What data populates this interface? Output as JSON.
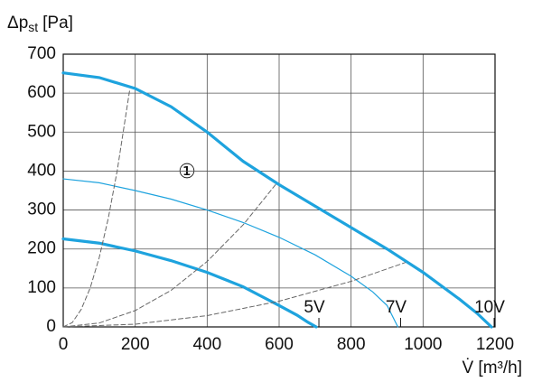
{
  "chart_data": {
    "type": "line",
    "ylabel": [
      "Δp",
      "st",
      "[Pa]"
    ],
    "xlabel": "V̇ [m³/h]",
    "annotation": "①",
    "xlim": [
      0,
      1200
    ],
    "xticks": [
      0,
      200,
      400,
      600,
      800,
      1000,
      1200
    ],
    "ylim": [
      0,
      700
    ],
    "yticks": [
      0,
      100,
      200,
      300,
      400,
      500,
      600,
      700
    ],
    "grid": true,
    "series": [
      {
        "name": "10V",
        "color": "#1ea3de",
        "line_width": 3.2,
        "dash": false,
        "x": [
          0,
          100,
          200,
          300,
          400,
          500,
          600,
          700,
          800,
          900,
          1000,
          1100,
          1150,
          1190
        ],
        "values": [
          652,
          640,
          612,
          565,
          500,
          425,
          365,
          310,
          255,
          200,
          140,
          72,
          35,
          0
        ]
      },
      {
        "name": "7V",
        "color": "#1ea3de",
        "line_width": 1.2,
        "dash": false,
        "x": [
          0,
          100,
          200,
          300,
          400,
          500,
          600,
          700,
          800,
          860,
          900,
          930
        ],
        "values": [
          380,
          370,
          350,
          328,
          300,
          268,
          230,
          185,
          130,
          90,
          55,
          0
        ]
      },
      {
        "name": "5V",
        "color": "#1ea3de",
        "line_width": 3.2,
        "dash": false,
        "x": [
          0,
          100,
          200,
          300,
          400,
          500,
          600,
          650,
          680,
          703
        ],
        "values": [
          226,
          215,
          195,
          170,
          140,
          103,
          55,
          30,
          12,
          0
        ]
      },
      {
        "color": "#666666",
        "line_width": 1,
        "dash": true,
        "x": [
          0,
          25,
          50,
          75,
          100,
          125,
          150,
          185
        ],
        "values": [
          0,
          11,
          45,
          100,
          178,
          278,
          401,
          610
        ]
      },
      {
        "color": "#666666",
        "line_width": 1,
        "dash": true,
        "x": [
          0,
          100,
          200,
          300,
          400,
          500,
          590
        ],
        "values": [
          0,
          10,
          42,
          94,
          168,
          262,
          365
        ]
      },
      {
        "color": "#666666",
        "line_width": 1,
        "dash": true,
        "x": [
          0,
          200,
          400,
          600,
          800,
          950
        ],
        "values": [
          0,
          7,
          29,
          66,
          117,
          165
        ]
      }
    ]
  }
}
